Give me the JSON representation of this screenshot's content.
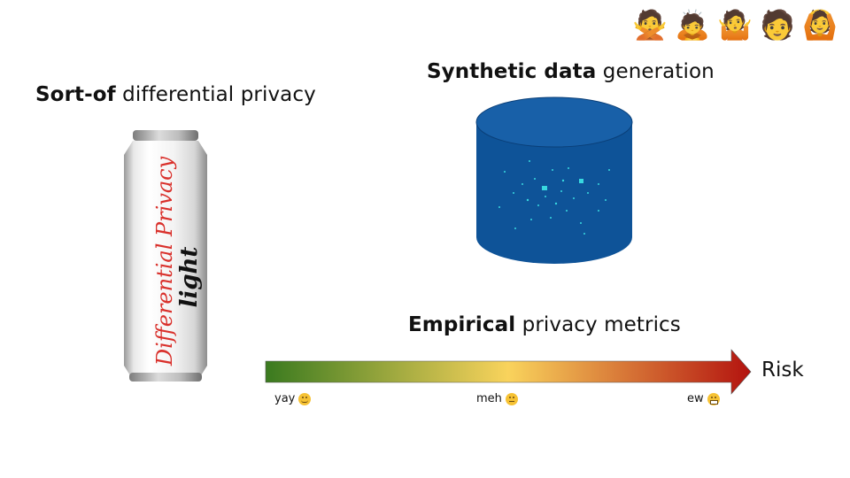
{
  "emoji_row": [
    {
      "icon": "person-gesturing-no-icon",
      "glyph": "🙅"
    },
    {
      "icon": "person-bowing-icon",
      "glyph": "🙇"
    },
    {
      "icon": "person-shrugging-icon",
      "glyph": "🤷"
    },
    {
      "icon": "person-neutral-icon",
      "glyph": "🧑"
    },
    {
      "icon": "person-gesturing-ok-icon",
      "glyph": "🙆"
    }
  ],
  "headings": {
    "dp": {
      "bold": "Sort-of",
      "rest": " differential privacy"
    },
    "synth": {
      "bold": "Synthetic data",
      "rest": " generation"
    },
    "empirical": {
      "bold": "Empirical",
      "rest": " privacy metrics"
    }
  },
  "can": {
    "text_main": "Differential Privacy",
    "text_light": "light"
  },
  "scale": {
    "end_label": "Risk",
    "labels": [
      {
        "text": "yay",
        "icon": "smiling-face-icon"
      },
      {
        "text": "meh",
        "icon": "neutral-face-icon"
      },
      {
        "text": "ew",
        "icon": "grimacing-face-icon"
      }
    ]
  },
  "colors": {
    "gradient_start": "#3a7a1f",
    "gradient_mid": "#f9d35c",
    "gradient_end": "#b3130f",
    "cylinder": "#0e5398",
    "cylinder_dots": "#38d8e0"
  }
}
